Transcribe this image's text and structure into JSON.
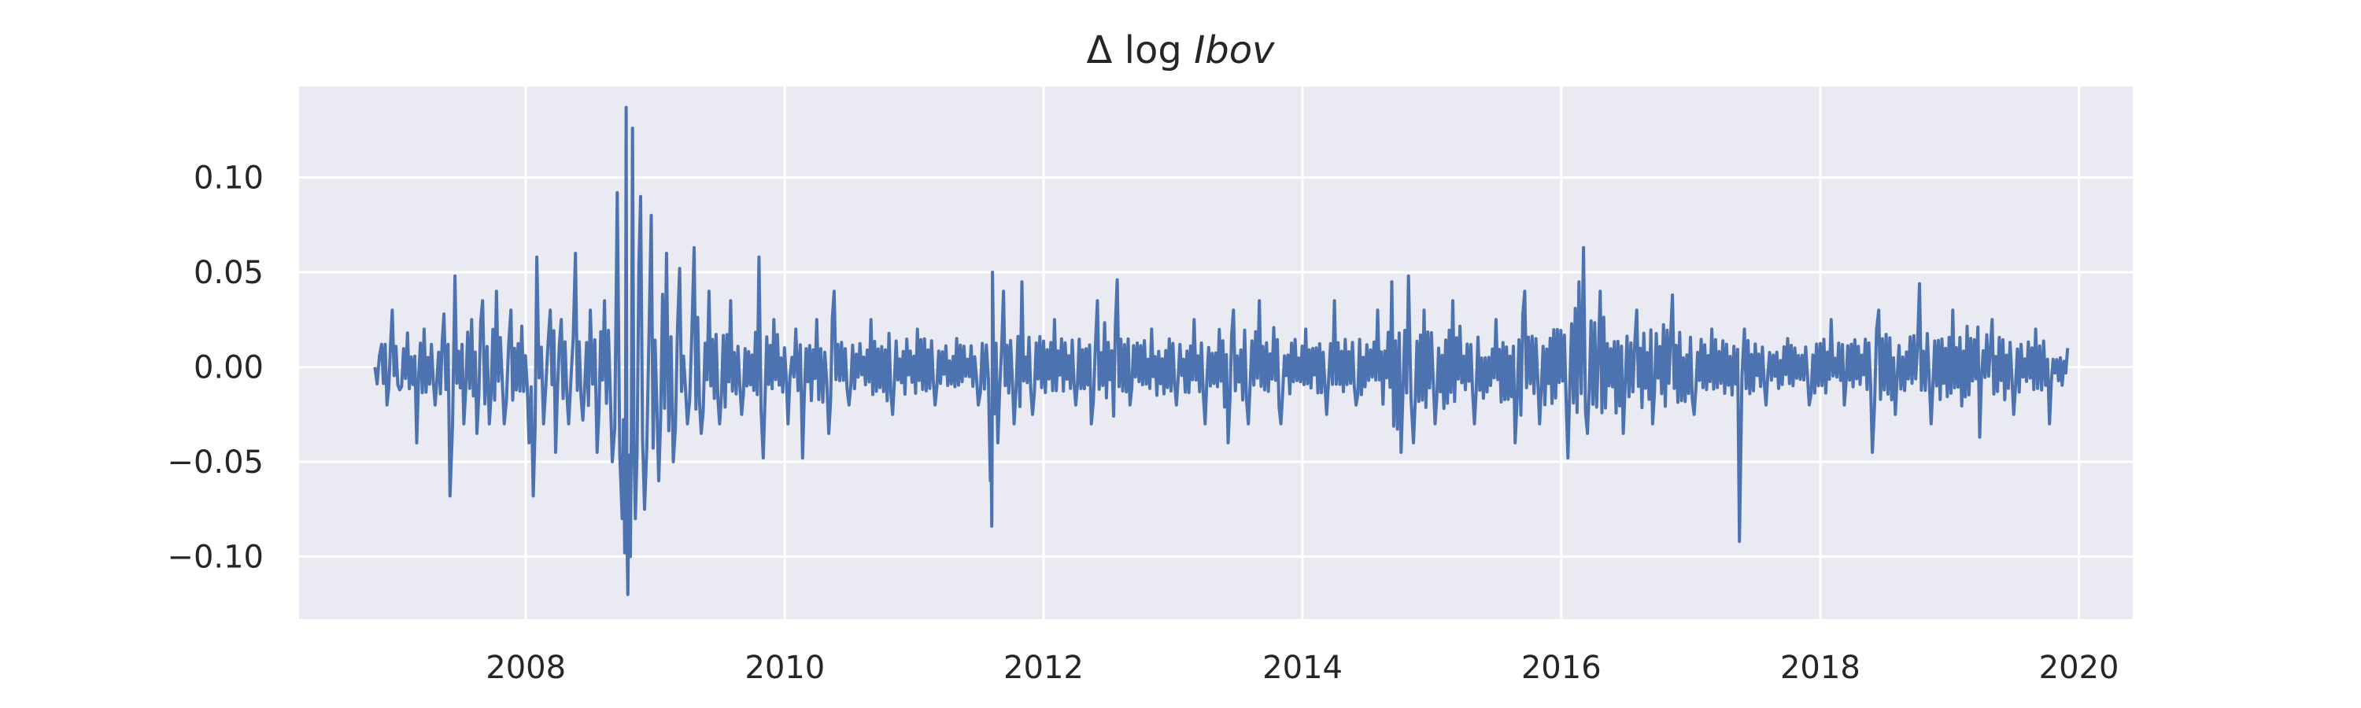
{
  "chart_data": {
    "type": "line",
    "title": {
      "prefix": "Δ log ",
      "emphasis": "Ibov"
    },
    "xlabel": "",
    "ylabel": "",
    "x_range": [
      "2006-11-01",
      "2019-11-30"
    ],
    "xlim": [
      "2006-04-01",
      "2020-06-01"
    ],
    "ylim": [
      -0.133,
      0.148
    ],
    "x_ticks": [
      {
        "value": "2008-01-01",
        "label": "2008"
      },
      {
        "value": "2010-01-01",
        "label": "2010"
      },
      {
        "value": "2012-01-01",
        "label": "2012"
      },
      {
        "value": "2014-01-01",
        "label": "2014"
      },
      {
        "value": "2016-01-01",
        "label": "2016"
      },
      {
        "value": "2018-01-01",
        "label": "2018"
      },
      {
        "value": "2020-01-01",
        "label": "2020"
      }
    ],
    "y_ticks": [
      {
        "value": 0.1,
        "label": "0.10"
      },
      {
        "value": 0.05,
        "label": "0.05"
      },
      {
        "value": 0.0,
        "label": "0.00"
      },
      {
        "value": -0.05,
        "label": "−0.05"
      },
      {
        "value": -0.1,
        "label": "−0.10"
      }
    ],
    "grid": true,
    "legend": "none",
    "colors": {
      "series": "#4c72b0",
      "plot_background": "#eaeaf2",
      "grid": "#ffffff",
      "text": "#262626"
    },
    "series": [
      {
        "type": "line",
        "points": [
          [
            "2006-11-01",
            0.0
          ],
          [
            "2006-11-20",
            0.012
          ],
          [
            "2006-12-05",
            -0.02
          ],
          [
            "2006-12-20",
            0.03
          ],
          [
            "2007-01-10",
            -0.012
          ],
          [
            "2007-02-01",
            0.018
          ],
          [
            "2007-02-27",
            -0.04
          ],
          [
            "2007-03-20",
            0.02
          ],
          [
            "2007-04-20",
            -0.02
          ],
          [
            "2007-05-15",
            0.028
          ],
          [
            "2007-06-01",
            -0.068
          ],
          [
            "2007-06-15",
            0.048
          ],
          [
            "2007-07-10",
            -0.03
          ],
          [
            "2007-08-01",
            0.025
          ],
          [
            "2007-08-16",
            -0.035
          ],
          [
            "2007-09-01",
            0.035
          ],
          [
            "2007-09-20",
            -0.03
          ],
          [
            "2007-10-10",
            0.04
          ],
          [
            "2007-11-01",
            -0.03
          ],
          [
            "2007-11-20",
            0.03
          ],
          [
            "2008-01-10",
            -0.04
          ],
          [
            "2008-01-22",
            -0.068
          ],
          [
            "2008-02-01",
            0.058
          ],
          [
            "2008-02-20",
            -0.03
          ],
          [
            "2008-03-10",
            0.03
          ],
          [
            "2008-03-25",
            -0.045
          ],
          [
            "2008-04-10",
            0.025
          ],
          [
            "2008-05-01",
            -0.03
          ],
          [
            "2008-05-20",
            0.06
          ],
          [
            "2008-06-10",
            -0.028
          ],
          [
            "2008-07-01",
            0.03
          ],
          [
            "2008-07-20",
            -0.045
          ],
          [
            "2008-08-10",
            0.035
          ],
          [
            "2008-09-01",
            -0.05
          ],
          [
            "2008-09-15",
            0.092
          ],
          [
            "2008-09-29",
            -0.08
          ],
          [
            "2008-10-06",
            -0.098
          ],
          [
            "2008-10-10",
            0.137
          ],
          [
            "2008-10-15",
            -0.12
          ],
          [
            "2008-10-22",
            -0.1
          ],
          [
            "2008-10-28",
            0.126
          ],
          [
            "2008-11-05",
            -0.08
          ],
          [
            "2008-11-20",
            0.09
          ],
          [
            "2008-12-01",
            -0.075
          ],
          [
            "2008-12-20",
            0.08
          ],
          [
            "2009-01-10",
            -0.06
          ],
          [
            "2009-02-01",
            0.06
          ],
          [
            "2009-02-20",
            -0.05
          ],
          [
            "2009-03-10",
            0.052
          ],
          [
            "2009-04-01",
            -0.03
          ],
          [
            "2009-04-20",
            0.063
          ],
          [
            "2009-05-10",
            -0.035
          ],
          [
            "2009-06-01",
            0.04
          ],
          [
            "2009-07-01",
            -0.03
          ],
          [
            "2009-08-01",
            0.035
          ],
          [
            "2009-09-01",
            -0.025
          ],
          [
            "2009-10-20",
            0.058
          ],
          [
            "2009-11-01",
            -0.048
          ],
          [
            "2009-12-01",
            0.025
          ],
          [
            "2010-01-10",
            -0.03
          ],
          [
            "2010-02-01",
            0.02
          ],
          [
            "2010-02-20",
            -0.048
          ],
          [
            "2010-04-01",
            0.025
          ],
          [
            "2010-05-05",
            -0.035
          ],
          [
            "2010-05-20",
            0.04
          ],
          [
            "2010-07-01",
            -0.02
          ],
          [
            "2010-09-01",
            0.025
          ],
          [
            "2010-11-01",
            -0.025
          ],
          [
            "2011-01-10",
            0.02
          ],
          [
            "2011-03-01",
            -0.02
          ],
          [
            "2011-05-01",
            0.015
          ],
          [
            "2011-07-01",
            -0.02
          ],
          [
            "2011-08-04",
            -0.06
          ],
          [
            "2011-08-08",
            -0.084
          ],
          [
            "2011-08-10",
            0.05
          ],
          [
            "2011-08-25",
            -0.04
          ],
          [
            "2011-09-10",
            0.04
          ],
          [
            "2011-10-10",
            -0.03
          ],
          [
            "2011-11-01",
            0.045
          ],
          [
            "2011-12-01",
            -0.025
          ],
          [
            "2012-02-01",
            0.025
          ],
          [
            "2012-04-01",
            -0.02
          ],
          [
            "2012-05-15",
            -0.03
          ],
          [
            "2012-06-01",
            0.035
          ],
          [
            "2012-07-27",
            0.046
          ],
          [
            "2012-09-01",
            -0.02
          ],
          [
            "2012-11-01",
            0.02
          ],
          [
            "2013-01-10",
            -0.02
          ],
          [
            "2013-03-01",
            0.025
          ],
          [
            "2013-04-01",
            -0.03
          ],
          [
            "2013-06-05",
            -0.04
          ],
          [
            "2013-06-20",
            0.03
          ],
          [
            "2013-08-01",
            -0.03
          ],
          [
            "2013-09-01",
            0.035
          ],
          [
            "2013-11-01",
            -0.03
          ],
          [
            "2014-01-10",
            0.02
          ],
          [
            "2014-03-10",
            -0.025
          ],
          [
            "2014-04-01",
            0.035
          ],
          [
            "2014-06-01",
            -0.02
          ],
          [
            "2014-08-01",
            0.03
          ],
          [
            "2014-09-10",
            0.045
          ],
          [
            "2014-10-06",
            -0.045
          ],
          [
            "2014-10-27",
            0.048
          ],
          [
            "2014-11-10",
            -0.04
          ],
          [
            "2014-12-10",
            0.03
          ],
          [
            "2015-01-10",
            -0.03
          ],
          [
            "2015-03-01",
            0.035
          ],
          [
            "2015-05-01",
            -0.03
          ],
          [
            "2015-07-01",
            0.025
          ],
          [
            "2015-08-24",
            -0.04
          ],
          [
            "2015-09-20",
            0.04
          ],
          [
            "2015-11-01",
            -0.03
          ],
          [
            "2016-01-20",
            -0.048
          ],
          [
            "2016-02-20",
            0.045
          ],
          [
            "2016-03-04",
            0.063
          ],
          [
            "2016-03-15",
            -0.035
          ],
          [
            "2016-04-20",
            0.04
          ],
          [
            "2016-06-24",
            -0.035
          ],
          [
            "2016-08-01",
            0.03
          ],
          [
            "2016-09-15",
            -0.03
          ],
          [
            "2016-11-10",
            0.038
          ],
          [
            "2017-01-10",
            -0.025
          ],
          [
            "2017-03-01",
            0.02
          ],
          [
            "2017-05-18",
            -0.092
          ],
          [
            "2017-06-01",
            0.02
          ],
          [
            "2017-08-01",
            -0.02
          ],
          [
            "2017-10-01",
            0.015
          ],
          [
            "2017-12-01",
            -0.02
          ],
          [
            "2018-02-01",
            0.025
          ],
          [
            "2018-03-10",
            -0.02
          ],
          [
            "2018-05-28",
            -0.045
          ],
          [
            "2018-06-15",
            0.03
          ],
          [
            "2018-08-01",
            -0.025
          ],
          [
            "2018-10-08",
            0.044
          ],
          [
            "2018-11-10",
            -0.03
          ],
          [
            "2019-01-10",
            0.03
          ],
          [
            "2019-03-27",
            -0.037
          ],
          [
            "2019-05-01",
            0.025
          ],
          [
            "2019-07-01",
            -0.025
          ],
          [
            "2019-09-01",
            0.02
          ],
          [
            "2019-10-10",
            -0.03
          ],
          [
            "2019-11-30",
            0.01
          ]
        ]
      }
    ]
  }
}
